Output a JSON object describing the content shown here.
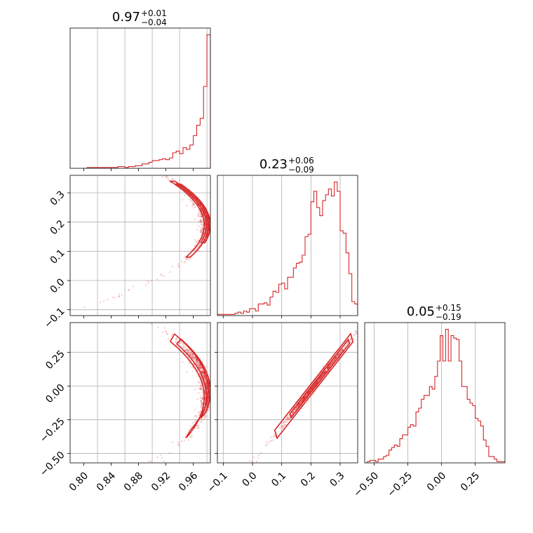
{
  "figure": {
    "accent_color": "#d62728",
    "grid": true,
    "type": "corner-plot"
  },
  "chart_data": [
    {
      "id": "hist-p1",
      "type": "histogram",
      "title": {
        "value": "0.97",
        "plus": "+0.01",
        "minus": "−0.04"
      },
      "xlim": [
        0.78,
        0.985
      ],
      "bin_width": 0.005,
      "x": [
        0.8,
        0.805,
        0.81,
        0.815,
        0.82,
        0.825,
        0.83,
        0.835,
        0.84,
        0.845,
        0.85,
        0.855,
        0.86,
        0.865,
        0.87,
        0.875,
        0.88,
        0.885,
        0.89,
        0.895,
        0.9,
        0.905,
        0.91,
        0.915,
        0.92,
        0.925,
        0.93,
        0.935,
        0.94,
        0.945,
        0.95,
        0.955,
        0.96,
        0.965,
        0.97,
        0.975,
        0.98
      ],
      "values": [
        0,
        1,
        1,
        1,
        1,
        1,
        1,
        1,
        1,
        1,
        2,
        2,
        1,
        2,
        2,
        3,
        3,
        5,
        5,
        7,
        9,
        9,
        10,
        11,
        10,
        12,
        18,
        20,
        17,
        24,
        22,
        27,
        38,
        50,
        58,
        95,
        155
      ],
      "x_ticks": [
        "0.80",
        "0.84",
        "0.88",
        "0.92",
        "0.96"
      ],
      "x_tick_values": [
        0.8,
        0.84,
        0.88,
        0.92,
        0.96
      ]
    },
    {
      "id": "scatter-p1-p2",
      "type": "scatter-contour",
      "xlim": [
        0.78,
        0.985
      ],
      "ylim": [
        -0.12,
        0.36
      ],
      "y_ticks": [
        "−0.1",
        "0.0",
        "0.1",
        "0.2",
        "0.3"
      ],
      "y_tick_values": [
        -0.1,
        0.0,
        0.1,
        0.2,
        0.3
      ]
    },
    {
      "id": "hist-p2",
      "type": "histogram",
      "title": {
        "value": "0.23",
        "plus": "+0.06",
        "minus": "−0.09"
      },
      "xlim": [
        -0.12,
        0.36
      ],
      "bin_width": 0.01,
      "x": [
        -0.12,
        -0.11,
        -0.1,
        -0.09,
        -0.08,
        -0.07,
        -0.06,
        -0.05,
        -0.04,
        -0.03,
        -0.02,
        -0.01,
        0.0,
        0.01,
        0.02,
        0.03,
        0.04,
        0.05,
        0.06,
        0.07,
        0.08,
        0.09,
        0.1,
        0.11,
        0.12,
        0.13,
        0.14,
        0.15,
        0.16,
        0.17,
        0.18,
        0.19,
        0.2,
        0.21,
        0.22,
        0.23,
        0.24,
        0.25,
        0.26,
        0.27,
        0.28,
        0.29,
        0.3,
        0.31,
        0.32,
        0.33,
        0.34,
        0.35
      ],
      "values": [
        1,
        1,
        1,
        1,
        1,
        1,
        2,
        3,
        2,
        4,
        3,
        6,
        6,
        4,
        10,
        10,
        11,
        9,
        16,
        21,
        20,
        27,
        28,
        23,
        33,
        33,
        41,
        45,
        46,
        52,
        68,
        70,
        98,
        107,
        93,
        86,
        99,
        104,
        109,
        103,
        115,
        107,
        73,
        71,
        54,
        36,
        12,
        10
      ],
      "x_ticks": [
        "−0.1",
        "0.0",
        "0.1",
        "0.2",
        "0.3"
      ],
      "x_tick_values": [
        -0.1,
        0.0,
        0.1,
        0.2,
        0.3
      ]
    },
    {
      "id": "scatter-p1-p3",
      "type": "scatter-contour",
      "xlim": [
        0.78,
        0.985
      ],
      "ylim": [
        -0.57,
        0.47
      ],
      "y_ticks": [
        "−0.50",
        "−0.25",
        "0.00",
        "0.25"
      ],
      "y_tick_values": [
        -0.5,
        -0.25,
        0.0,
        0.25
      ]
    },
    {
      "id": "scatter-p2-p3",
      "type": "scatter-contour",
      "xlim": [
        -0.12,
        0.36
      ],
      "ylim": [
        -0.57,
        0.47
      ]
    },
    {
      "id": "hist-p3",
      "type": "histogram",
      "title": {
        "value": "0.05",
        "plus": "+0.15",
        "minus": "−0.19"
      },
      "xlim": [
        -0.57,
        0.47
      ],
      "bin_width": 0.02,
      "x": [
        -0.57,
        -0.55,
        -0.53,
        -0.51,
        -0.49,
        -0.47,
        -0.45,
        -0.43,
        -0.41,
        -0.39,
        -0.37,
        -0.35,
        -0.33,
        -0.31,
        -0.29,
        -0.27,
        -0.25,
        -0.23,
        -0.21,
        -0.19,
        -0.17,
        -0.15,
        -0.13,
        -0.11,
        -0.09,
        -0.07,
        -0.05,
        -0.03,
        -0.01,
        0.01,
        0.03,
        0.05,
        0.07,
        0.09,
        0.11,
        0.13,
        0.15,
        0.17,
        0.19,
        0.21,
        0.23,
        0.25,
        0.27,
        0.29,
        0.31,
        0.33,
        0.35,
        0.37,
        0.39,
        0.41,
        0.43,
        0.45
      ],
      "values": [
        0,
        1,
        2,
        2,
        1,
        3,
        3,
        5,
        6,
        10,
        12,
        14,
        13,
        19,
        22,
        22,
        28,
        30,
        29,
        40,
        43,
        50,
        53,
        53,
        60,
        58,
        68,
        80,
        100,
        80,
        105,
        80,
        100,
        98,
        97,
        80,
        60,
        60,
        50,
        47,
        45,
        35,
        33,
        29,
        18,
        13,
        5,
        5,
        3,
        1,
        1,
        1
      ],
      "x_ticks": [
        "−0.50",
        "−0.25",
        "0.00",
        "0.25"
      ],
      "x_tick_values": [
        -0.5,
        -0.25,
        0.0,
        0.25
      ]
    }
  ]
}
